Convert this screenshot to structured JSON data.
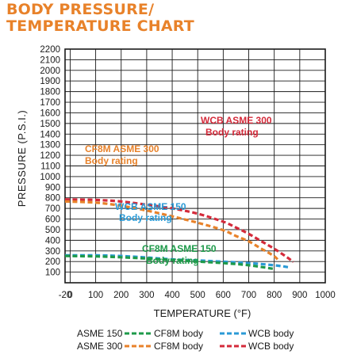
{
  "chart_data": {
    "type": "line",
    "title_line1": "BODY PRESSURE/",
    "title_line2": "TEMPERATURE CHART",
    "xlabel": "TEMPERATURE (°F)",
    "ylabel": "PRESSURE (P.S.I.)",
    "xlim": [
      -20,
      1000
    ],
    "ylim": [
      0,
      2200
    ],
    "x_ticks": [
      -20,
      0,
      100,
      200,
      300,
      400,
      500,
      600,
      700,
      800,
      900,
      1000
    ],
    "y_ticks": [
      100,
      200,
      300,
      400,
      500,
      600,
      700,
      800,
      900,
      1000,
      1100,
      1200,
      1300,
      1400,
      1500,
      1600,
      1700,
      1800,
      1900,
      2000,
      2100,
      2200
    ],
    "y_tick_labels": [
      "100",
      "200",
      "300",
      "400",
      "500",
      "600",
      "700",
      "800",
      "900",
      "1000",
      "1100",
      "1200",
      "1300",
      "1400",
      "1500",
      "1600",
      "1700",
      "1800",
      "1900",
      "2000",
      "2100",
      "2200"
    ],
    "grid": true,
    "colors": {
      "green": "#1e9a4a",
      "blue": "#2a9ad6",
      "orange": "#e8822a",
      "red": "#d42a3a"
    },
    "series": [
      {
        "id": "wcb300",
        "name": "WCB ASME 300",
        "sub": "Body rating",
        "color": "#d42a3a",
        "x": [
          -20,
          100,
          200,
          300,
          400,
          500,
          600,
          650,
          700,
          750,
          800,
          850,
          875
        ],
        "y": [
          785,
          780,
          765,
          735,
          700,
          650,
          575,
          520,
          460,
          390,
          320,
          240,
          195
        ]
      },
      {
        "id": "cf8m300",
        "name": "CF8M ASME 300",
        "sub": "Body rating",
        "color": "#e8822a",
        "x": [
          -20,
          100,
          200,
          300,
          400,
          500,
          600,
          650,
          700,
          750,
          800,
          820
        ],
        "y": [
          765,
          755,
          725,
          680,
          625,
          565,
          495,
          440,
          390,
          320,
          250,
          200
        ]
      },
      {
        "id": "wcb150",
        "name": "WCB ASME 150",
        "sub": "Body rating",
        "color": "#2a9ad6",
        "x": [
          -20,
          100,
          200,
          300,
          400,
          500,
          600,
          700,
          800,
          860
        ],
        "y": [
          258,
          258,
          252,
          238,
          220,
          210,
          198,
          185,
          165,
          145
        ]
      },
      {
        "id": "cf8m150",
        "name": "CF8M ASME 150",
        "sub": "Body rating",
        "color": "#1e9a4a",
        "x": [
          -20,
          100,
          200,
          300,
          400,
          500,
          600,
          700,
          800
        ],
        "y": [
          252,
          248,
          240,
          228,
          215,
          200,
          185,
          165,
          130
        ]
      }
    ],
    "legend": {
      "row1_label": "ASME 150",
      "row2_label": "ASME 300",
      "cf8m_body": "CF8M body",
      "wcb_body": "WCB body"
    }
  }
}
